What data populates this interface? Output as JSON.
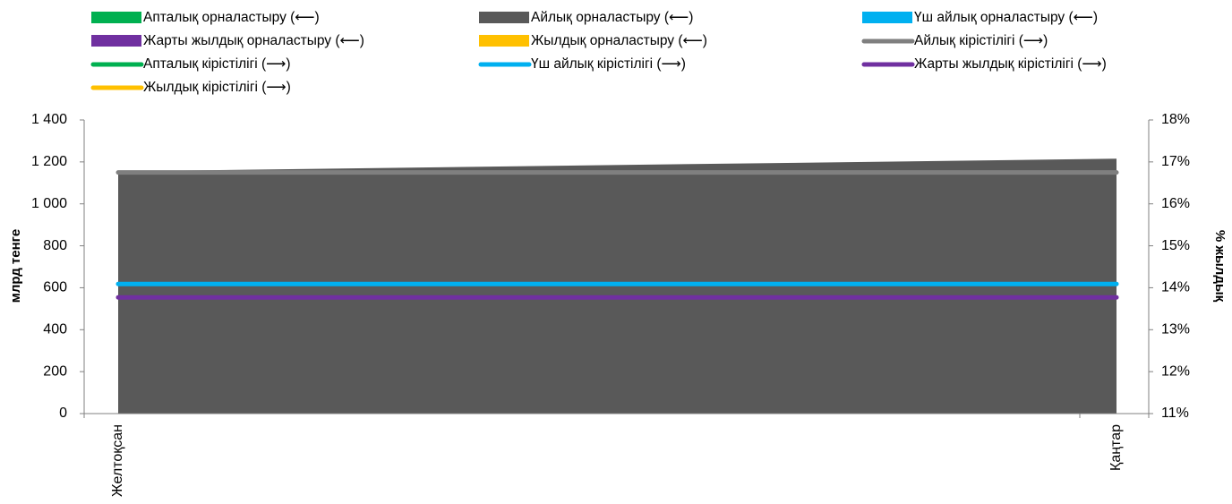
{
  "chart_data": {
    "type": "area",
    "categories": [
      "Желтоқсан",
      "Қаңтар"
    ],
    "y_left": {
      "label": "млрд тенге",
      "ylim": [
        0,
        1400
      ],
      "ticks": [
        0,
        200,
        400,
        600,
        800,
        1000,
        1200,
        1400
      ],
      "tick_labels": [
        "0",
        "200",
        "400",
        "600",
        "800",
        "1 000",
        "1 200",
        "1 400"
      ]
    },
    "y_right": {
      "label": "% жылдық",
      "ylim": [
        11,
        18
      ],
      "ticks": [
        11,
        12,
        13,
        14,
        15,
        16,
        17,
        18
      ],
      "tick_labels": [
        "11%",
        "12%",
        "13%",
        "14%",
        "15%",
        "16%",
        "17%",
        "18%"
      ]
    },
    "grid": false,
    "legend_position": "top",
    "series": [
      {
        "name": "Апталық орналастыру (⟵)",
        "kind": "area",
        "axis": "left",
        "color": "#00b050",
        "values": [
          0,
          0
        ]
      },
      {
        "name": "Айлық орналастыру (⟵)",
        "kind": "area",
        "axis": "left",
        "color": "#595959",
        "values": [
          1155,
          1215
        ]
      },
      {
        "name": "Үш айлық орналастыру (⟵)",
        "kind": "area",
        "axis": "left",
        "color": "#00b0f0",
        "values": [
          0,
          0
        ]
      },
      {
        "name": "Жарты жылдық орналастыру (⟵)",
        "kind": "area",
        "axis": "left",
        "color": "#7030a0",
        "values": [
          0,
          0
        ]
      },
      {
        "name": "Жылдық орналастыру (⟵)",
        "kind": "area",
        "axis": "left",
        "color": "#ffc000",
        "values": [
          0,
          0
        ]
      },
      {
        "name": "Айлық кірістілігі (⟶)",
        "kind": "line",
        "axis": "right",
        "color": "#7f7f7f",
        "values": [
          16.75,
          16.75
        ]
      },
      {
        "name": "Апталық кірістілігі (⟶)",
        "kind": "line",
        "axis": "right",
        "color": "#00b050",
        "values": [
          null,
          null
        ]
      },
      {
        "name": "Үш айлық кірістілігі (⟶)",
        "kind": "line",
        "axis": "right",
        "color": "#00b0f0",
        "values": [
          14.09,
          14.09
        ]
      },
      {
        "name": "Жарты жылдық кірістілігі (⟶)",
        "kind": "line",
        "axis": "right",
        "color": "#7030a0",
        "values": [
          13.77,
          13.77
        ]
      },
      {
        "name": "Жылдық кірістілігі (⟶)",
        "kind": "line",
        "axis": "right",
        "color": "#ffc000",
        "values": [
          null,
          null
        ]
      }
    ]
  }
}
